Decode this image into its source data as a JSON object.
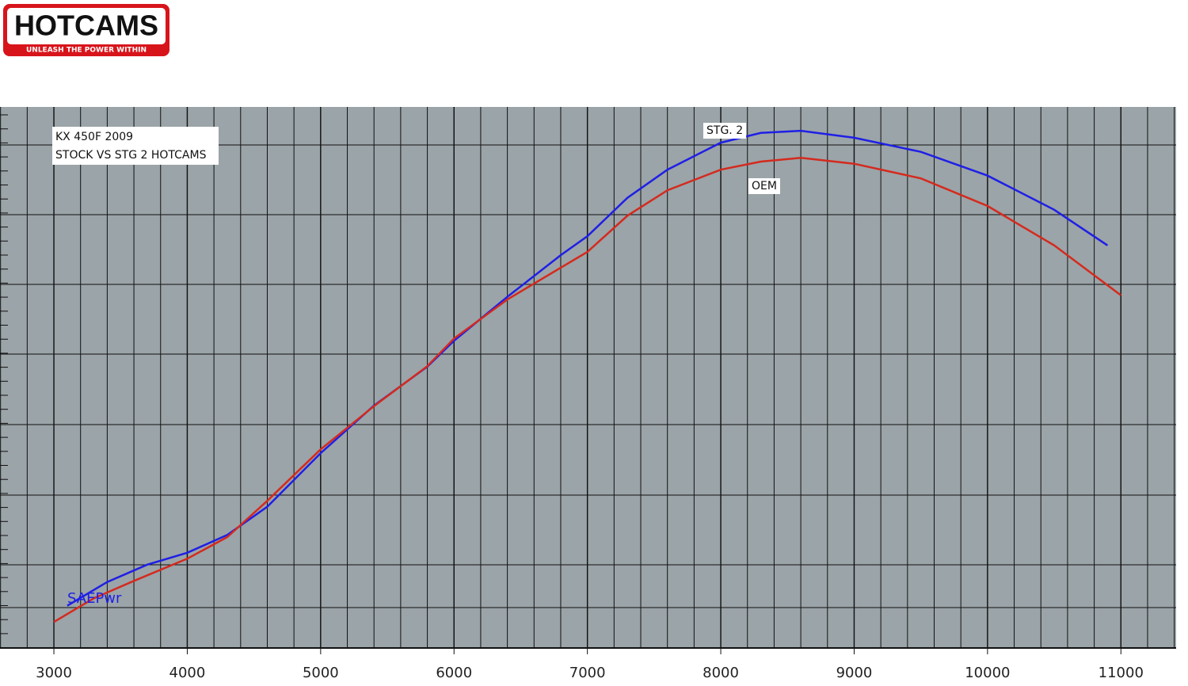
{
  "logo": {
    "name": "HOTCAMS",
    "tagline": "UNLEASH THE POWER WITHIN"
  },
  "chart_data": {
    "type": "line",
    "title": "KX 450F 2009",
    "subtitle": "STOCK VS STG 2 HOTCAMS",
    "annotation": "SAEPwr",
    "xlim": [
      2596,
      11414
    ],
    "ylim": [
      0,
      100
    ],
    "xticks": [
      3000,
      4000,
      5000,
      6000,
      7000,
      8000,
      9000,
      10000,
      11000
    ],
    "grid": true,
    "series": [
      {
        "name": "STG. 2",
        "color": "#1f1fe6",
        "x": [
          3100,
          3400,
          3700,
          4000,
          4300,
          4600,
          5000,
          5400,
          5800,
          6000,
          6400,
          6800,
          7000,
          7300,
          7600,
          8000,
          8300,
          8600,
          9000,
          9500,
          10000,
          10500,
          10900
        ],
        "values": [
          7.8,
          12.2,
          15.4,
          17.6,
          20.9,
          26.1,
          36.0,
          44.8,
          52.0,
          56.8,
          64.9,
          72.6,
          76.1,
          83.2,
          88.4,
          93.4,
          95.2,
          95.6,
          94.3,
          91.7,
          87.3,
          81.0,
          74.4
        ]
      },
      {
        "name": "OEM",
        "color": "#d42a1e",
        "x": [
          3000,
          3300,
          3600,
          4000,
          4300,
          4600,
          5000,
          5400,
          5800,
          6000,
          6400,
          6800,
          7000,
          7300,
          7600,
          8000,
          8300,
          8600,
          9000,
          9500,
          10000,
          10500,
          11000
        ],
        "values": [
          4.8,
          9.2,
          12.4,
          16.5,
          20.5,
          27.2,
          36.7,
          44.7,
          52.1,
          57.2,
          64.4,
          70.3,
          73.2,
          79.9,
          84.6,
          88.4,
          89.9,
          90.6,
          89.5,
          86.8,
          81.7,
          74.4,
          65.2
        ]
      }
    ]
  }
}
